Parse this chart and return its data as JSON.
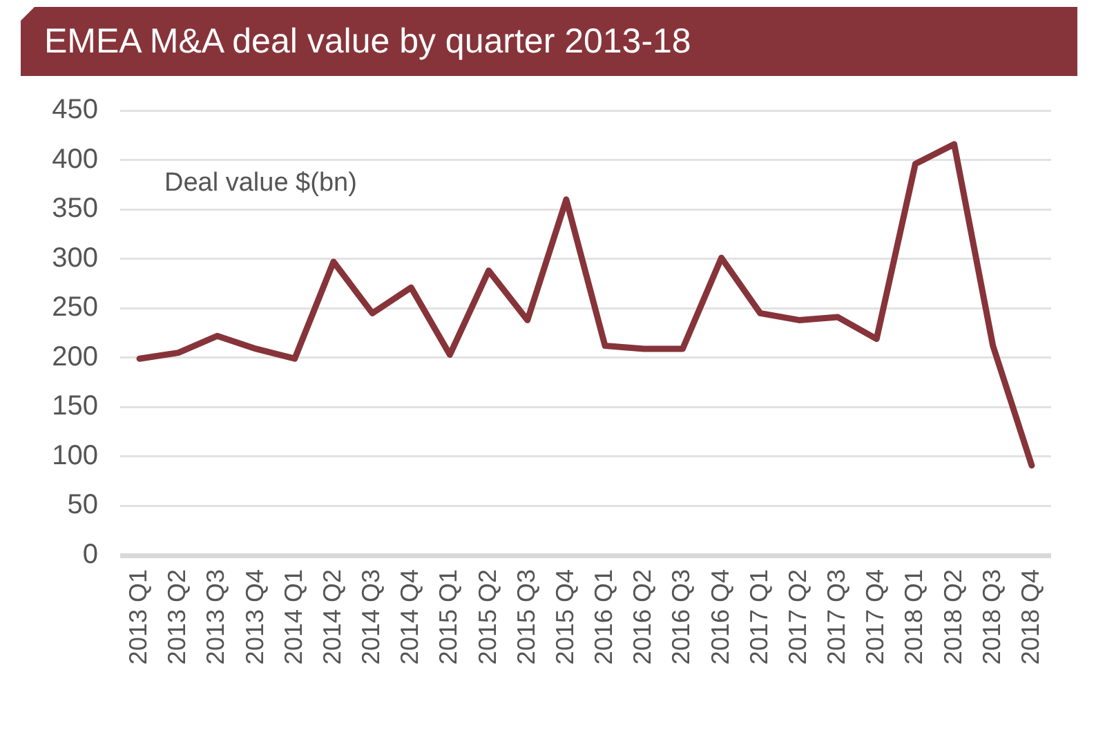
{
  "chart_data": {
    "type": "line",
    "title": "EMEA M&A deal value by quarter 2013-18",
    "ylabel": "Deal value $(bn)",
    "categories": [
      "2013 Q1",
      "2013 Q2",
      "2013 Q3",
      "2013 Q4",
      "2014 Q1",
      "2014 Q2",
      "2014 Q3",
      "2014 Q4",
      "2015 Q1",
      "2015 Q2",
      "2015 Q3",
      "2015 Q4",
      "2016 Q1",
      "2016 Q2",
      "2016 Q3",
      "2016 Q4",
      "2017 Q1",
      "2017 Q2",
      "2017 Q3",
      "2017 Q4",
      "2018 Q1",
      "2018 Q2",
      "2018 Q3",
      "2018 Q4"
    ],
    "series": [
      {
        "color": "#86343a",
        "values": [
          199,
          205,
          222,
          209,
          199,
          297,
          245,
          271,
          203,
          288,
          238,
          360,
          212,
          209,
          209,
          301,
          245,
          238,
          241,
          219,
          396,
          416,
          212,
          91
        ]
      }
    ],
    "ylim": [
      0,
      450
    ],
    "yticks": [
      0,
      50,
      100,
      150,
      200,
      250,
      300,
      350,
      400,
      450
    ],
    "grid": "y",
    "legend": false,
    "marker": "none",
    "line_style": "solid"
  }
}
